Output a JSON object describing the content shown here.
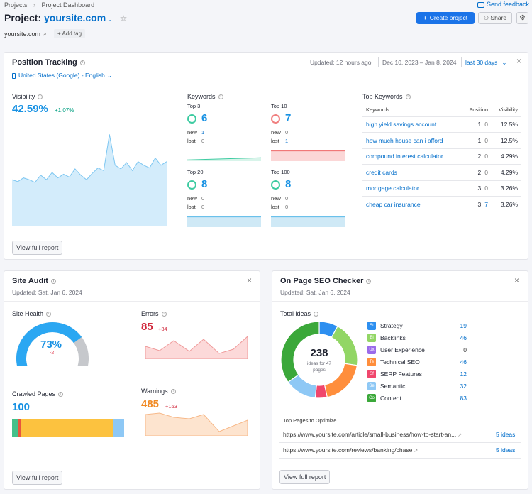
{
  "header": {
    "breadcrumb_root": "Projects",
    "breadcrumb_current": "Project Dashboard",
    "send_feedback": "Send feedback",
    "project_prefix": "Project:",
    "project_name": "yoursite.com",
    "domain": "yoursite.com",
    "add_tag": "Add tag",
    "create_project": "Create project",
    "share": "Share"
  },
  "position_tracking": {
    "title": "Position Tracking",
    "location": "United States (Google) - English",
    "updated": "Updated: 12 hours ago",
    "date_range": "Dec 10, 2023 – Jan 8, 2024",
    "period": "last 30 days",
    "visibility_label": "Visibility",
    "visibility_value": "42.59%",
    "visibility_delta": "+1.07%",
    "visibility_series": [
      0.5,
      0.48,
      0.52,
      0.5,
      0.47,
      0.55,
      0.5,
      0.58,
      0.52,
      0.56,
      0.53,
      0.62,
      0.55,
      0.5,
      0.57,
      0.63,
      0.6,
      1.0,
      0.66,
      0.62,
      0.69,
      0.6,
      0.7,
      0.66,
      0.63,
      0.74,
      0.66,
      0.7
    ],
    "keywords_label": "Keywords",
    "groups": [
      {
        "label": "Top 3",
        "value": "6",
        "new_label": "new",
        "new": "1",
        "lost_label": "lost",
        "lost": "0",
        "color": "#3dcba1",
        "fill": "#d8f4ea",
        "level": 0.3
      },
      {
        "label": "Top 10",
        "value": "7",
        "new_label": "new",
        "new": "0",
        "lost_label": "lost",
        "lost": "1",
        "color": "#f08080",
        "fill": "#fbd7d7",
        "level": 0.9
      },
      {
        "label": "Top 20",
        "value": "8",
        "new_label": "new",
        "new": "0",
        "lost_label": "lost",
        "lost": "0",
        "color": "#3dcba1",
        "fill": "#cfe9f6",
        "level": 0.9
      },
      {
        "label": "Top 100",
        "value": "8",
        "new_label": "new",
        "new": "0",
        "lost_label": "lost",
        "lost": "0",
        "color": "#3dcba1",
        "fill": "#cfe9f6",
        "level": 0.9
      }
    ],
    "top_keywords_label": "Top Keywords",
    "columns": [
      "Keywords",
      "Position",
      "Visibility"
    ],
    "keywords": [
      {
        "kw": "high yield savings account",
        "pos": "1",
        "change": "0",
        "vis": "12.5%"
      },
      {
        "kw": "how much house can i afford",
        "pos": "1",
        "change": "0",
        "vis": "12.5%"
      },
      {
        "kw": "compound interest calculator",
        "pos": "2",
        "change": "0",
        "vis": "4.29%"
      },
      {
        "kw": "credit cards",
        "pos": "2",
        "change": "0",
        "vis": "4.29%"
      },
      {
        "kw": "mortgage calculator",
        "pos": "3",
        "change": "0",
        "vis": "3.26%"
      },
      {
        "kw": "cheap car insurance",
        "pos": "3",
        "change": "7",
        "vis": "3.26%"
      }
    ],
    "view_full_report": "View full report"
  },
  "site_audit": {
    "title": "Site Audit",
    "updated": "Updated: Sat, Jan 6, 2024",
    "health_label": "Site Health",
    "health_value": "73%",
    "health_delta": "-2",
    "health_level": 0.73,
    "errors_label": "Errors",
    "errors_value": "85",
    "errors_delta": "+34",
    "crawled_label": "Crawled Pages",
    "crawled_value": "100",
    "crawled_segments": [
      {
        "color": "#44c08a",
        "share": 0.05
      },
      {
        "color": "#e8553d",
        "share": 0.03
      },
      {
        "color": "#fcc23f",
        "share": 0.82
      },
      {
        "color": "#8ec8f5",
        "share": 0.1
      }
    ],
    "warnings_label": "Warnings",
    "warnings_value": "485",
    "warnings_delta": "+163",
    "view_full_report": "View full report"
  },
  "on_page_seo": {
    "title": "On Page SEO Checker",
    "updated": "Updated: Sat, Jan 6, 2024",
    "total_ideas_label": "Total ideas",
    "total_value": "238",
    "total_sub": "ideas for 47 pages",
    "categories": [
      {
        "abbr": "St",
        "name": "Strategy",
        "value": "19",
        "count": 19,
        "color": "#2d8ff0"
      },
      {
        "abbr": "Bl",
        "name": "Backlinks",
        "value": "46",
        "count": 46,
        "color": "#92d665"
      },
      {
        "abbr": "Ux",
        "name": "User Experience",
        "value": "0",
        "count": 0,
        "color": "#9b6bea"
      },
      {
        "abbr": "Te",
        "name": "Technical SEO",
        "value": "46",
        "count": 46,
        "color": "#ff8e3c"
      },
      {
        "abbr": "Sf",
        "name": "SERP Features",
        "value": "12",
        "count": 12,
        "color": "#f0466c"
      },
      {
        "abbr": "Se",
        "name": "Semantic",
        "value": "32",
        "count": 32,
        "color": "#8ec8f5"
      },
      {
        "abbr": "Co",
        "name": "Content",
        "value": "83",
        "count": 83,
        "color": "#3ba83a"
      }
    ],
    "top_pages_label": "Top Pages to Optimize",
    "pages": [
      {
        "url": "https://www.yoursite.com/article/small-business/how-to-start-an...",
        "ideas": "5 ideas"
      },
      {
        "url": "https://www.yoursite.com/reviews/banking/chase",
        "ideas": "5 ideas"
      }
    ],
    "view_full_report": "View full report"
  }
}
